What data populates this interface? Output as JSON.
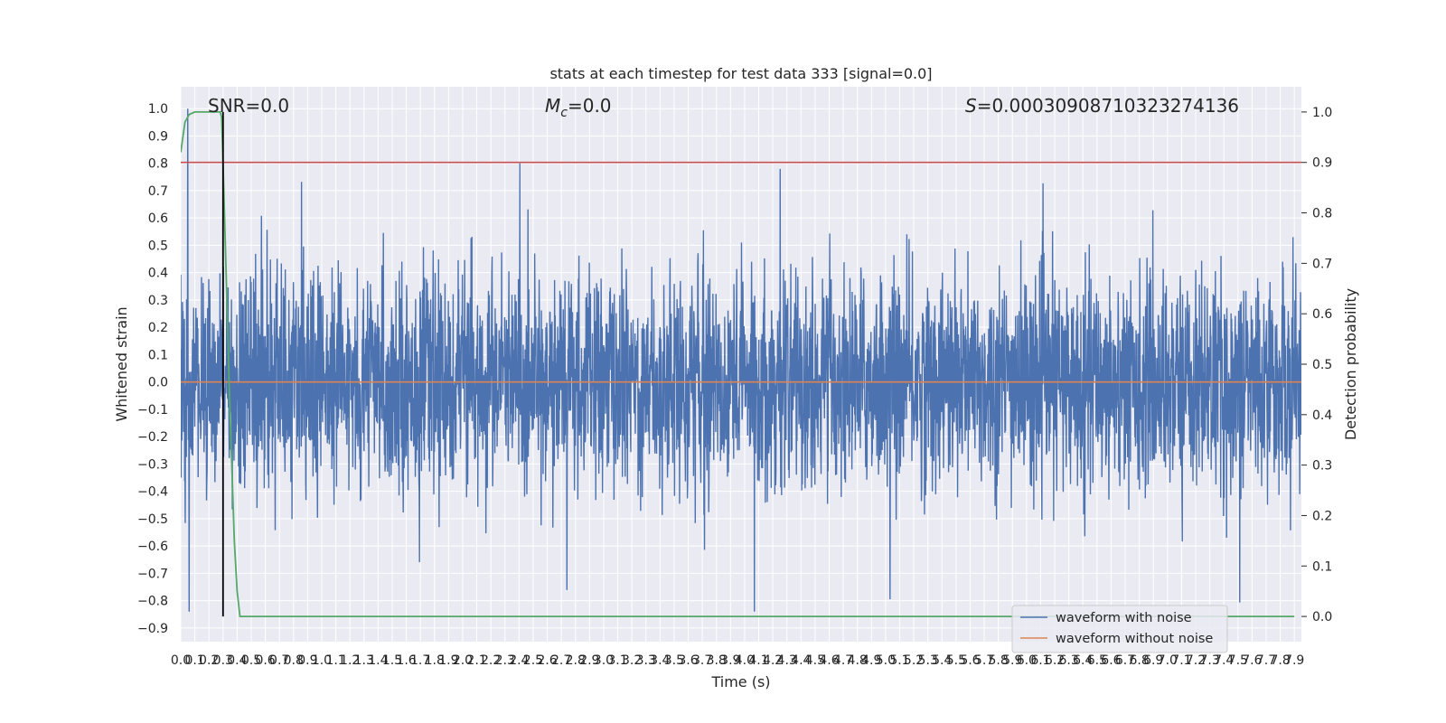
{
  "chart_data": {
    "type": "line",
    "title": "stats at each timestep for test data 333 [signal=0.0]",
    "xlabel": "Time (s)",
    "ylabel_left": "Whitened strain",
    "ylabel_right": "Detection probability",
    "xlim": [
      0.0,
      7.95
    ],
    "ylim_left": [
      -0.95,
      1.08
    ],
    "ylim_right": [
      -0.05,
      1.05
    ],
    "grid": true,
    "x_ticks": [
      "0.0",
      "0.1",
      "0.2",
      "0.3",
      "0.4",
      "0.5",
      "0.6",
      "0.7",
      "0.8",
      "0.9",
      "1.0",
      "1.1",
      "1.2",
      "1.3",
      "1.4",
      "1.5",
      "1.6",
      "1.7",
      "1.8",
      "1.9",
      "2.0",
      "2.1",
      "2.2",
      "2.3",
      "2.4",
      "2.5",
      "2.6",
      "2.7",
      "2.8",
      "2.9",
      "3.0",
      "3.1",
      "3.2",
      "3.3",
      "3.4",
      "3.5",
      "3.6",
      "3.7",
      "3.8",
      "3.9",
      "4.0",
      "4.1",
      "4.2",
      "4.3",
      "4.4",
      "4.5",
      "4.6",
      "4.7",
      "4.8",
      "4.9",
      "5.0",
      "5.1",
      "5.2",
      "5.3",
      "5.4",
      "5.5",
      "5.6",
      "5.7",
      "5.8",
      "5.9",
      "6.0",
      "6.1",
      "6.2",
      "6.3",
      "6.4",
      "6.5",
      "6.6",
      "6.7",
      "6.8",
      "6.9",
      "7.0",
      "7.1",
      "7.2",
      "7.3",
      "7.4",
      "7.5",
      "7.6",
      "7.7",
      "7.8",
      "7.9"
    ],
    "y_ticks_left": [
      "-0.9",
      "-0.8",
      "-0.7",
      "-0.6",
      "-0.5",
      "-0.4",
      "-0.3",
      "-0.2",
      "-0.1",
      "0.0",
      "0.1",
      "0.2",
      "0.3",
      "0.4",
      "0.5",
      "0.6",
      "0.7",
      "0.8",
      "0.9",
      "1.0"
    ],
    "y_ticks_right": [
      "0.0",
      "0.1",
      "0.2",
      "0.3",
      "0.4",
      "0.5",
      "0.6",
      "0.7",
      "0.8",
      "0.9",
      "1.0"
    ],
    "annotations": {
      "snr": "SNR=0.0",
      "mc_symbol": "M",
      "mc_sub": "c",
      "mc_value": "=0.0",
      "s_symbol": "S",
      "s_value": "=0.00030908710323274136"
    },
    "legend": {
      "placement": "lower-right",
      "entries": [
        "waveform with noise",
        "waveform without noise"
      ]
    },
    "series": [
      {
        "name": "waveform with noise",
        "axis": "left",
        "color": "#4c72b0",
        "kind": "noise",
        "typical_range": [
          -0.55,
          0.5
        ],
        "extremes": [
          -0.84,
          1.0
        ]
      },
      {
        "name": "waveform without noise",
        "axis": "left",
        "color": "#dd8452",
        "kind": "constant",
        "value": 0.0
      },
      {
        "axis": "right",
        "color": "#55a868",
        "x": [
          0.0,
          0.03,
          0.06,
          0.1,
          0.15,
          0.2,
          0.25,
          0.28,
          0.29,
          0.3,
          0.32,
          0.35,
          0.38,
          0.4,
          0.42,
          7.9
        ],
        "y": [
          0.92,
          0.98,
          0.995,
          1.0,
          1.0,
          1.0,
          1.0,
          1.0,
          0.99,
          0.9,
          0.7,
          0.4,
          0.15,
          0.05,
          0.0,
          0.0
        ]
      },
      {
        "axis": "right",
        "color": "#c44e52",
        "kind": "threshold",
        "value": 0.9
      },
      {
        "axis": "right",
        "color": "#000000",
        "kind": "vertical-line",
        "x": 0.3,
        "y_range": [
          0.0,
          1.0
        ]
      }
    ]
  }
}
